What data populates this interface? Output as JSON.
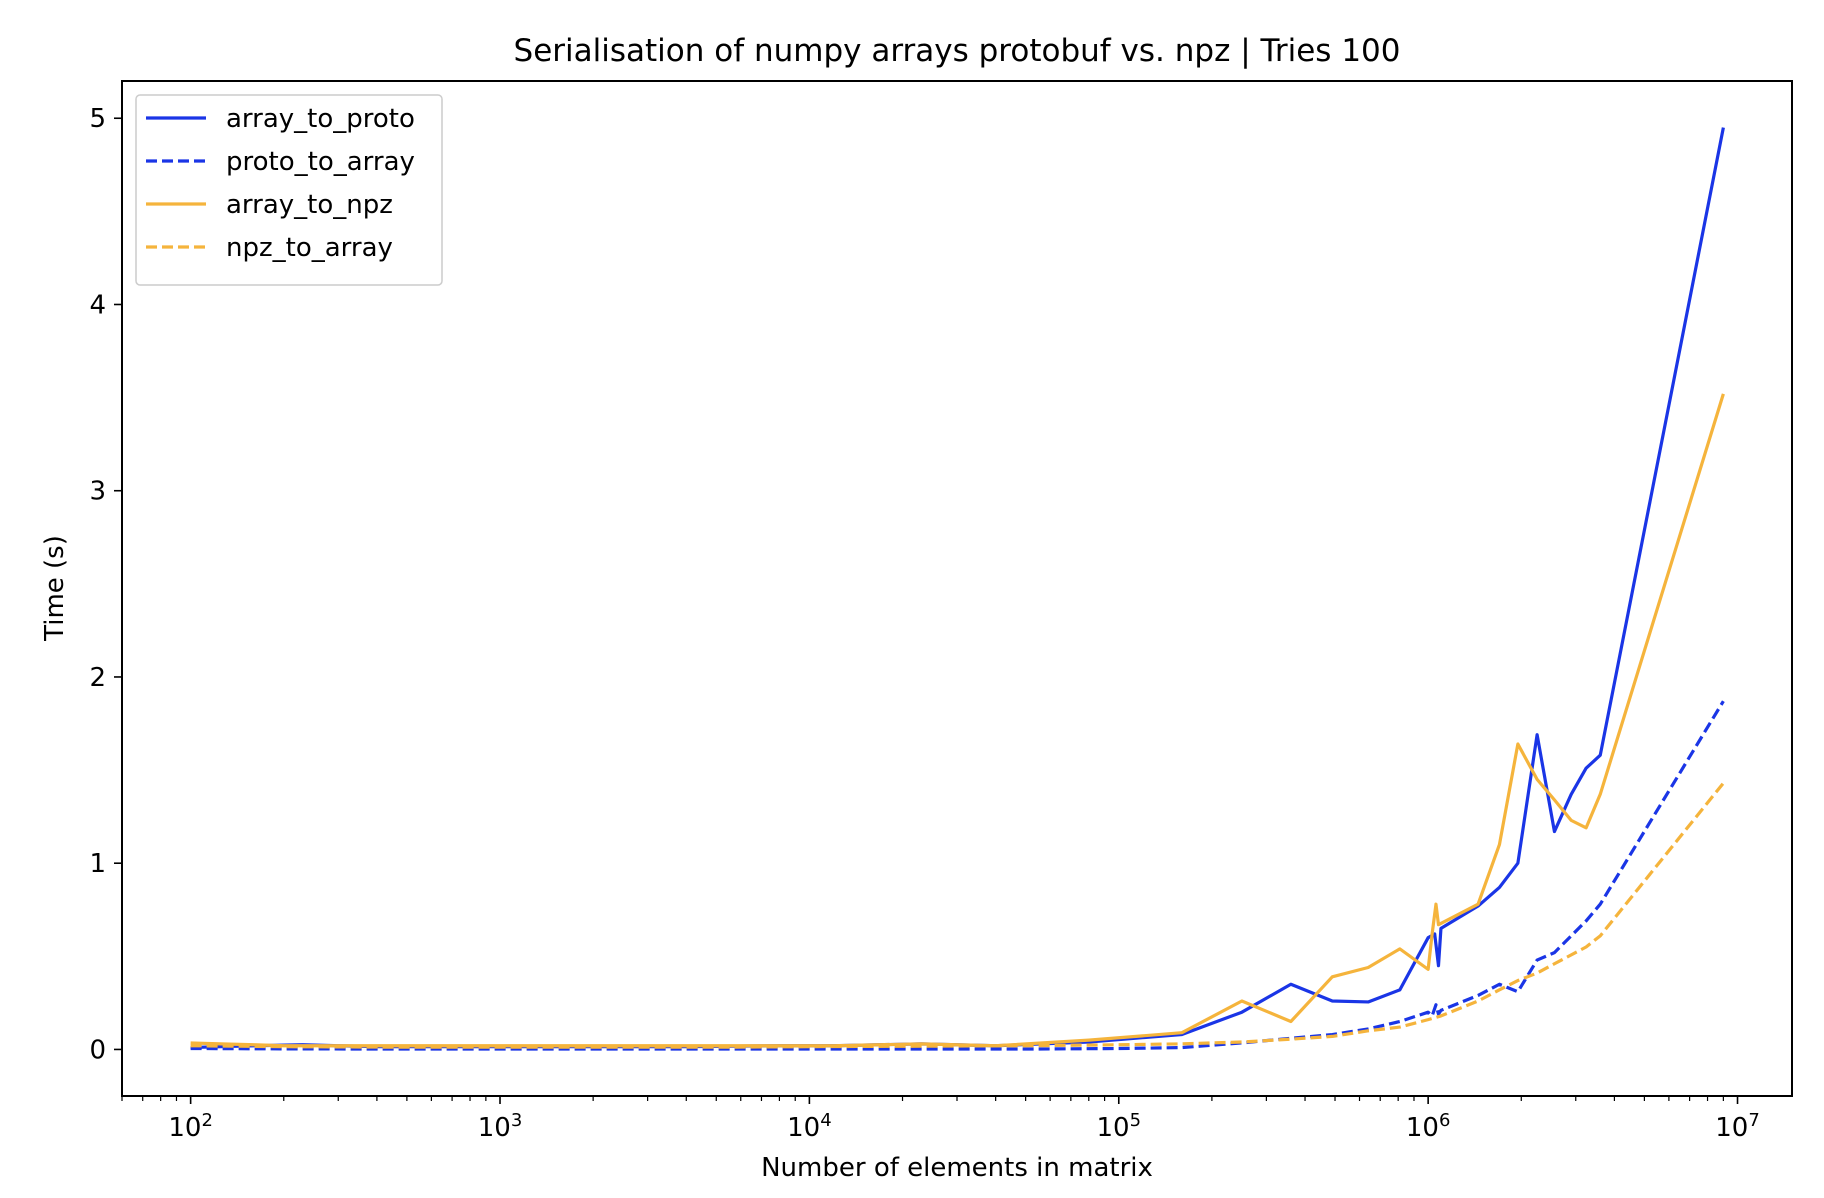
{
  "chart_data": {
    "type": "line",
    "title": "Serialisation of numpy arrays protobuf vs. npz | Tries 100",
    "xlabel": "Number of elements in matrix",
    "ylabel": "Time (s)",
    "xscale": "log",
    "xlim": [
      60,
      15000000
    ],
    "ylim": [
      -0.25,
      5.2
    ],
    "grid": false,
    "legend_position": "top-left",
    "x_ticks": [
      {
        "value": 100,
        "base": "10",
        "exp": "2"
      },
      {
        "value": 1000,
        "base": "10",
        "exp": "3"
      },
      {
        "value": 10000,
        "base": "10",
        "exp": "4"
      },
      {
        "value": 100000,
        "base": "10",
        "exp": "5"
      },
      {
        "value": 1000000,
        "base": "10",
        "exp": "6"
      },
      {
        "value": 10000000,
        "base": "10",
        "exp": "7"
      }
    ],
    "y_ticks": [
      {
        "value": 0,
        "label": "0"
      },
      {
        "value": 1,
        "label": "1"
      },
      {
        "value": 2,
        "label": "2"
      },
      {
        "value": 3,
        "label": "3"
      },
      {
        "value": 4,
        "label": "4"
      },
      {
        "value": 5,
        "label": "5"
      }
    ],
    "series": [
      {
        "name": "array_to_proto",
        "color": "#1a35e6",
        "dash": false,
        "x": [
          100,
          125,
          160,
          230,
          300,
          400,
          600,
          1000,
          2000,
          4000,
          8000,
          12000,
          23000,
          40000,
          80000,
          160000,
          250000,
          360000,
          490000,
          640000,
          810000,
          1000000,
          1050000,
          1080000,
          1100000,
          1450000,
          1700000,
          1950000,
          2250000,
          2560000,
          2900000,
          3240000,
          3600000,
          9000000
        ],
        "y": [
          0.01,
          0.015,
          0.02,
          0.025,
          0.02,
          0.015,
          0.015,
          0.015,
          0.015,
          0.015,
          0.02,
          0.02,
          0.03,
          0.02,
          0.04,
          0.08,
          0.2,
          0.35,
          0.26,
          0.255,
          0.32,
          0.6,
          0.62,
          0.45,
          0.65,
          0.77,
          0.87,
          1.0,
          1.69,
          1.17,
          1.37,
          1.51,
          1.58,
          4.95
        ]
      },
      {
        "name": "proto_to_array",
        "color": "#1a35e6",
        "dash": true,
        "x": [
          100,
          200,
          500,
          1000,
          5000,
          10000,
          50000,
          100000,
          160000,
          250000,
          360000,
          490000,
          640000,
          810000,
          1000000,
          1030000,
          1060000,
          1080000,
          1100000,
          1450000,
          1700000,
          1950000,
          2250000,
          2560000,
          3240000,
          3600000,
          9000000
        ],
        "y": [
          0.005,
          0.003,
          0.002,
          0.002,
          0.002,
          0.002,
          0.002,
          0.005,
          0.01,
          0.035,
          0.06,
          0.08,
          0.11,
          0.15,
          0.2,
          0.18,
          0.24,
          0.19,
          0.21,
          0.29,
          0.35,
          0.31,
          0.48,
          0.52,
          0.69,
          0.78,
          1.87
        ]
      },
      {
        "name": "array_to_npz",
        "color": "#f5b43c",
        "dash": false,
        "x": [
          100,
          125,
          160,
          200,
          300,
          400,
          600,
          1000,
          2000,
          4000,
          8000,
          12000,
          23000,
          40000,
          80000,
          160000,
          250000,
          360000,
          490000,
          640000,
          810000,
          1000000,
          1030000,
          1060000,
          1080000,
          1450000,
          1700000,
          1950000,
          2250000,
          2560000,
          2900000,
          3240000,
          3600000,
          9000000
        ],
        "y": [
          0.035,
          0.03,
          0.025,
          0.02,
          0.02,
          0.02,
          0.02,
          0.02,
          0.02,
          0.02,
          0.02,
          0.02,
          0.03,
          0.02,
          0.05,
          0.09,
          0.26,
          0.15,
          0.39,
          0.44,
          0.54,
          0.43,
          0.62,
          0.78,
          0.67,
          0.78,
          1.1,
          1.64,
          1.45,
          1.34,
          1.23,
          1.19,
          1.37,
          3.52
        ]
      },
      {
        "name": "npz_to_array",
        "color": "#f5b43c",
        "dash": true,
        "x": [
          100,
          200,
          500,
          1000,
          5000,
          10000,
          50000,
          100000,
          160000,
          250000,
          360000,
          490000,
          640000,
          810000,
          1000000,
          1100000,
          1450000,
          1700000,
          1950000,
          2250000,
          2560000,
          3240000,
          3600000,
          9000000
        ],
        "y": [
          0.02,
          0.015,
          0.012,
          0.012,
          0.012,
          0.015,
          0.02,
          0.025,
          0.03,
          0.04,
          0.055,
          0.07,
          0.1,
          0.12,
          0.16,
          0.18,
          0.26,
          0.32,
          0.37,
          0.41,
          0.46,
          0.55,
          0.61,
          1.43
        ]
      }
    ]
  }
}
